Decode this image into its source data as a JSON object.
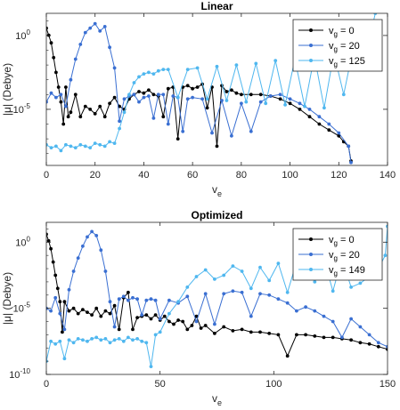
{
  "chart_data": [
    {
      "type": "line",
      "title": "Linear",
      "xlabel": "v",
      "xlabel_sub": "e",
      "ylabel": "|μ| (Debye)",
      "xlim": [
        0,
        140
      ],
      "xticks": [
        "0",
        "20",
        "40",
        "60",
        "80",
        "100",
        "120",
        "140"
      ],
      "yscale": "log",
      "ylim_exp": [
        -8.8,
        1.5
      ],
      "yticks": [
        {
          "exp": 0,
          "label": "10",
          "sup": "0"
        },
        {
          "exp": -5,
          "label": "10",
          "sup": "-5"
        }
      ],
      "legend_position": "top-right",
      "series": [
        {
          "name": "v_g = 0",
          "label_main": "v",
          "label_sub": "g",
          "label_rest": " = 0",
          "color": "#000000",
          "x": [
            0,
            1,
            2,
            3,
            4,
            5,
            6,
            7,
            8,
            9,
            10,
            12,
            14,
            16,
            18,
            20,
            22,
            24,
            26,
            28,
            30,
            32,
            34,
            36,
            38,
            40,
            42,
            44,
            46,
            48,
            50,
            52,
            54,
            56,
            58,
            60,
            62,
            64,
            66,
            68,
            70,
            72,
            74,
            76,
            78,
            80,
            84,
            88,
            92,
            96,
            100,
            104,
            108,
            112,
            116,
            120,
            122,
            124,
            125
          ],
          "y": [
            0.5,
            0.02,
            -0.5,
            -1.5,
            -2.5,
            -3.5,
            -4.5,
            -6.0,
            -3.5,
            -5.5,
            -5.2,
            -4.0,
            -5.5,
            -4.8,
            -5.0,
            -5.3,
            -4.8,
            -5.5,
            -4.6,
            -4.2,
            -4.8,
            -5.0,
            -4.3,
            -4.0,
            -3.8,
            -3.9,
            -3.7,
            -4.0,
            -4.1,
            -5.5,
            -3.6,
            -3.5,
            -7.0,
            -3.5,
            -3.4,
            -3.6,
            -3.5,
            -3.3,
            -4.9,
            -3.5,
            -7.5,
            -3.4,
            -3.8,
            -3.7,
            -3.9,
            -4.0,
            -4.0,
            -4.0,
            -4.1,
            -4.3,
            -4.6,
            -5.0,
            -5.5,
            -6.0,
            -6.4,
            -6.8,
            -7.2,
            -7.5,
            -8.5
          ]
        },
        {
          "name": "v_g = 20",
          "label_main": "v",
          "label_sub": "g",
          "label_rest": " = 20",
          "color": "#3a6fd2",
          "x": [
            0,
            2,
            4,
            6,
            8,
            10,
            12,
            14,
            16,
            18,
            20,
            22,
            24,
            26,
            28,
            30,
            32,
            34,
            36,
            38,
            40,
            42,
            44,
            46,
            48,
            50,
            52,
            54,
            56,
            58,
            60,
            64,
            68,
            72,
            76,
            80,
            84,
            88,
            92,
            96,
            100,
            104,
            108,
            112,
            116,
            120,
            124,
            125
          ],
          "y": [
            -4.5,
            -3.9,
            -4.2,
            -4.0,
            -4.8,
            -3.0,
            -1.6,
            -0.6,
            0.2,
            0.5,
            0.8,
            0.3,
            0.6,
            -0.8,
            -2.2,
            -5.8,
            -4.3,
            -4.1,
            -4.0,
            -4.5,
            -4.2,
            -4.1,
            -5.6,
            -4.0,
            -4.0,
            -6.0,
            -4.1,
            -4.2,
            -6.5,
            -4.3,
            -4.2,
            -4.3,
            -6.6,
            -4.4,
            -6.8,
            -4.6,
            -6.5,
            -4.5,
            -4.1,
            -4.0,
            -4.3,
            -4.6,
            -5.0,
            -5.5,
            -6.0,
            -6.6,
            -7.5,
            -8.6
          ]
        },
        {
          "name": "v_g = 125",
          "label_main": "v",
          "label_sub": "g",
          "label_rest": " = 125",
          "color": "#4fb7ef",
          "x": [
            0,
            2,
            4,
            6,
            8,
            10,
            12,
            14,
            16,
            18,
            20,
            22,
            24,
            26,
            28,
            30,
            32,
            34,
            36,
            38,
            40,
            42,
            44,
            46,
            48,
            50,
            54,
            58,
            62,
            66,
            70,
            74,
            78,
            82,
            86,
            90,
            94,
            98,
            102,
            106,
            110,
            114,
            118,
            122,
            126,
            130,
            134,
            135
          ],
          "y": [
            -7.4,
            -7.6,
            -7.5,
            -7.8,
            -7.4,
            -7.5,
            -7.6,
            -7.4,
            -7.5,
            -7.6,
            -7.3,
            -7.4,
            -7.5,
            -7.2,
            -7.3,
            -6.3,
            -5.2,
            -4.0,
            -3.2,
            -2.8,
            -2.6,
            -2.5,
            -2.6,
            -2.4,
            -2.3,
            -2.3,
            -4.2,
            -2.3,
            -2.2,
            -4.3,
            -2.1,
            -4.4,
            -2.0,
            -4.5,
            -1.9,
            -4.6,
            -1.7,
            -4.7,
            -1.6,
            -4.8,
            -1.4,
            -4.9,
            -1.2,
            -4.0,
            -0.8,
            -0.2,
            0.8,
            1.5
          ]
        }
      ]
    },
    {
      "type": "line",
      "title": "Optimized",
      "xlabel": "v",
      "xlabel_sub": "e",
      "ylabel": "|μ| (Debye)",
      "xlim": [
        0,
        150
      ],
      "xticks": [
        "0",
        "50",
        "100",
        "150"
      ],
      "yscale": "log",
      "ylim_exp": [
        -10,
        1.5
      ],
      "yticks": [
        {
          "exp": 0,
          "label": "10",
          "sup": "0"
        },
        {
          "exp": -5,
          "label": "10",
          "sup": "-5"
        },
        {
          "exp": -10,
          "label": "10",
          "sup": "-10"
        }
      ],
      "legend_position": "top-right",
      "series": [
        {
          "name": "v_g = 0",
          "label_main": "v",
          "label_sub": "g",
          "label_rest": " = 0",
          "color": "#000000",
          "x": [
            0,
            1,
            2,
            3,
            4,
            5,
            6,
            7,
            8,
            10,
            12,
            14,
            16,
            18,
            20,
            22,
            24,
            26,
            28,
            30,
            32,
            34,
            36,
            38,
            40,
            42,
            44,
            46,
            48,
            50,
            52,
            54,
            56,
            58,
            60,
            62,
            64,
            66,
            68,
            70,
            74,
            78,
            82,
            86,
            90,
            94,
            98,
            102,
            106,
            110,
            114,
            118,
            122,
            126,
            130,
            134,
            138,
            142,
            146,
            150
          ],
          "y": [
            0.6,
            0.1,
            -0.5,
            -1.5,
            -2.5,
            -3.5,
            -4.5,
            -6.8,
            -4.5,
            -5.2,
            -5.0,
            -5.4,
            -5.1,
            -5.3,
            -5.5,
            -5.0,
            -5.6,
            -5.2,
            -5.4,
            -4.8,
            -6.6,
            -4.2,
            -3.8,
            -6.6,
            -5.7,
            -5.6,
            -5.5,
            -5.8,
            -5.5,
            -5.9,
            -5.6,
            -6.0,
            -6.2,
            -5.9,
            -6.0,
            -6.6,
            -6.3,
            -5.6,
            -6.5,
            -6.3,
            -6.9,
            -6.4,
            -6.7,
            -6.6,
            -6.8,
            -6.8,
            -6.9,
            -7.0,
            -8.6,
            -7.0,
            -7.0,
            -7.1,
            -7.2,
            -7.2,
            -7.3,
            -7.4,
            -7.6,
            -7.7,
            -7.9,
            -8.1
          ]
        },
        {
          "name": "v_g = 20",
          "label_main": "v",
          "label_sub": "g",
          "label_rest": " = 20",
          "color": "#3a6fd2",
          "x": [
            0,
            2,
            4,
            6,
            8,
            10,
            12,
            14,
            16,
            18,
            20,
            22,
            24,
            26,
            28,
            30,
            32,
            34,
            36,
            38,
            40,
            42,
            44,
            46,
            48,
            50,
            54,
            58,
            62,
            66,
            70,
            74,
            78,
            82,
            86,
            90,
            94,
            98,
            102,
            106,
            110,
            114,
            118,
            122,
            126,
            130,
            134,
            138,
            142,
            146,
            150
          ],
          "y": [
            -5.0,
            -5.2,
            -4.2,
            -5.4,
            -6.6,
            -3.6,
            -2.2,
            -1.2,
            -0.3,
            0.4,
            0.8,
            0.5,
            -0.6,
            -2.2,
            -4.5,
            -6.4,
            -4.3,
            -4.1,
            -4.4,
            -4.2,
            -4.3,
            -5.5,
            -4.4,
            -4.3,
            -4.4,
            -5.8,
            -4.4,
            -4.6,
            -4.1,
            -6.0,
            -3.9,
            -6.2,
            -3.9,
            -3.7,
            -3.8,
            -5.6,
            -3.9,
            -4.0,
            -4.3,
            -4.6,
            -5.2,
            -4.9,
            -5.2,
            -5.6,
            -6.0,
            -7.2,
            -5.8,
            -6.4,
            -7.0,
            -7.6,
            -7.9
          ]
        },
        {
          "name": "v_g = 149",
          "label_main": "v",
          "label_sub": "g",
          "label_rest": " = 149",
          "color": "#4fb7ef",
          "x": [
            0,
            2,
            4,
            6,
            8,
            10,
            12,
            14,
            16,
            18,
            20,
            22,
            24,
            26,
            28,
            30,
            32,
            34,
            36,
            38,
            40,
            42,
            44,
            46,
            48,
            50,
            54,
            58,
            62,
            66,
            70,
            74,
            78,
            82,
            86,
            90,
            94,
            98,
            102,
            106,
            110,
            114,
            118,
            122,
            126,
            130,
            134,
            138,
            142,
            146,
            149,
            150
          ],
          "y": [
            -9.0,
            -7.5,
            -7.7,
            -7.5,
            -8.8,
            -7.4,
            -7.6,
            -7.3,
            -7.4,
            -7.5,
            -7.3,
            -7.2,
            -7.4,
            -7.3,
            -7.6,
            -7.4,
            -7.3,
            -7.5,
            -7.2,
            -7.4,
            -7.3,
            -7.5,
            -7.6,
            -9.4,
            -7.0,
            -6.8,
            -5.4,
            -4.5,
            -3.4,
            -2.6,
            -2.1,
            -2.8,
            -2.5,
            -1.8,
            -2.2,
            -3.5,
            -1.9,
            -2.9,
            -1.6,
            -3.8,
            -1.5,
            -1.8,
            -3.0,
            -1.3,
            -3.7,
            -1.2,
            -3.4,
            -3.1,
            -2.6,
            -2.0,
            -1.0,
            1.2
          ]
        }
      ]
    }
  ]
}
